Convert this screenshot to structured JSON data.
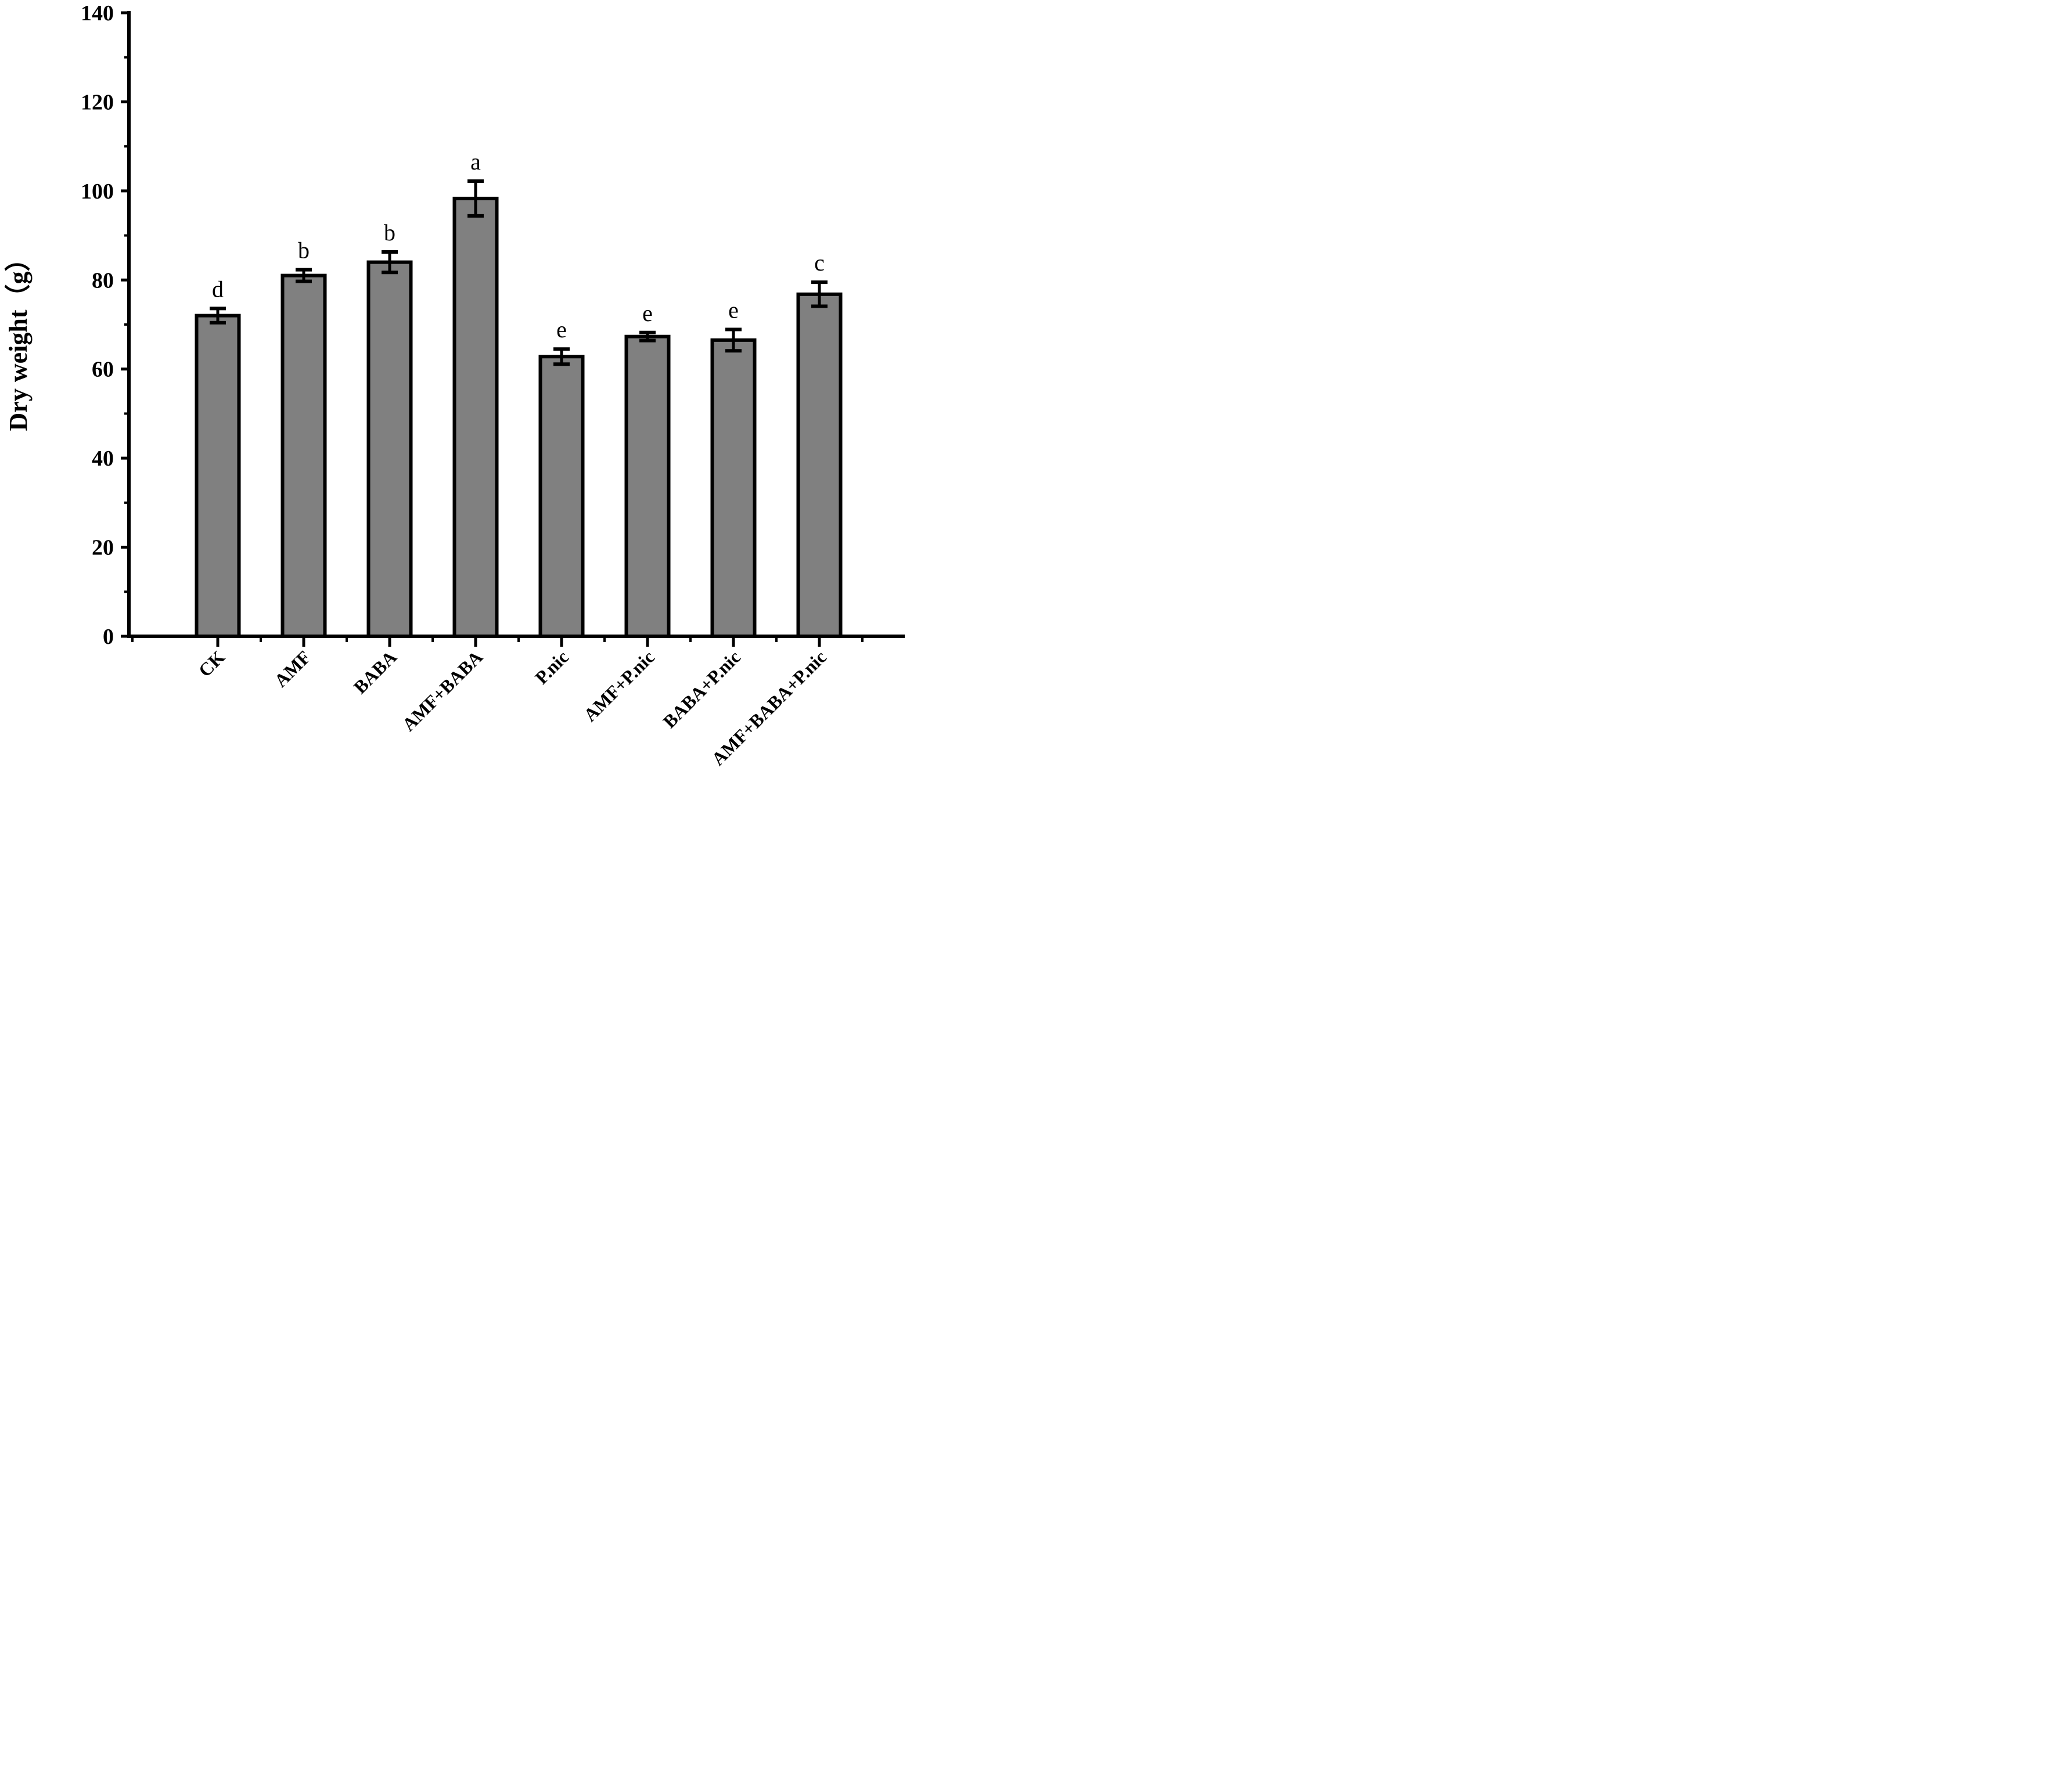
{
  "chart_data": {
    "type": "bar",
    "title": "",
    "xlabel": "",
    "ylabel": "Dry weight（g）",
    "ylim": [
      0,
      140
    ],
    "yticks": [
      "0",
      "20",
      "40",
      "60",
      "80",
      "100",
      "120",
      "140"
    ],
    "grid": false,
    "legend": "none",
    "bar_color": "#808080",
    "edge_color": "#000000",
    "categories": [
      "CK",
      "AMF",
      "BABA",
      "AMF+BABA",
      "P.nic",
      "AMF+P.nic",
      "BABA+P.nic",
      "AMF+BABA+P.nic"
    ],
    "values": [
      72.0,
      81.0,
      84.0,
      98.3,
      62.8,
      67.3,
      66.5,
      76.8
    ],
    "errors": [
      1.6,
      1.3,
      2.3,
      3.9,
      1.7,
      0.9,
      2.4,
      2.7
    ],
    "significance": [
      "d",
      "b",
      "b",
      "a",
      "e",
      "e",
      "e",
      "c"
    ]
  }
}
